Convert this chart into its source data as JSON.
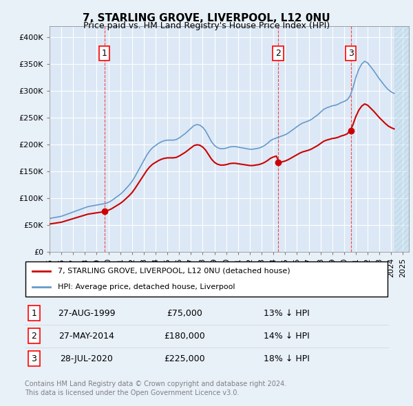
{
  "title": "7, STARLING GROVE, LIVERPOOL, L12 0NU",
  "subtitle": "Price paid vs. HM Land Registry's House Price Index (HPI)",
  "legend_line1": "7, STARLING GROVE, LIVERPOOL, L12 0NU (detached house)",
  "legend_line2": "HPI: Average price, detached house, Liverpool",
  "footer1": "Contains HM Land Registry data © Crown copyright and database right 2024.",
  "footer2": "This data is licensed under the Open Government Licence v3.0.",
  "sale_color": "#cc0000",
  "hpi_color": "#6699cc",
  "bg_color": "#e8f0f8",
  "plot_bg": "#dce8f5",
  "grid_color": "#ffffff",
  "transactions": [
    {
      "num": 1,
      "date": "27-AUG-1999",
      "price": 75000,
      "pct": "13%",
      "dir": "↓",
      "year": 1999.65
    },
    {
      "num": 2,
      "date": "27-MAY-2014",
      "price": 180000,
      "pct": "14%",
      "dir": "↓",
      "year": 2014.4
    },
    {
      "num": 3,
      "date": "28-JUL-2020",
      "price": 225000,
      "pct": "18%",
      "dir": "↓",
      "year": 2020.57
    }
  ],
  "hpi_years": [
    1995,
    1995.25,
    1995.5,
    1995.75,
    1996,
    1996.25,
    1996.5,
    1996.75,
    1997,
    1997.25,
    1997.5,
    1997.75,
    1998,
    1998.25,
    1998.5,
    1998.75,
    1999,
    1999.25,
    1999.5,
    1999.75,
    2000,
    2000.25,
    2000.5,
    2000.75,
    2001,
    2001.25,
    2001.5,
    2001.75,
    2002,
    2002.25,
    2002.5,
    2002.75,
    2003,
    2003.25,
    2003.5,
    2003.75,
    2004,
    2004.25,
    2004.5,
    2004.75,
    2005,
    2005.25,
    2005.5,
    2005.75,
    2006,
    2006.25,
    2006.5,
    2006.75,
    2007,
    2007.25,
    2007.5,
    2007.75,
    2008,
    2008.25,
    2008.5,
    2008.75,
    2009,
    2009.25,
    2009.5,
    2009.75,
    2010,
    2010.25,
    2010.5,
    2010.75,
    2011,
    2011.25,
    2011.5,
    2011.75,
    2012,
    2012.25,
    2012.5,
    2012.75,
    2013,
    2013.25,
    2013.5,
    2013.75,
    2014,
    2014.25,
    2014.5,
    2014.75,
    2015,
    2015.25,
    2015.5,
    2015.75,
    2016,
    2016.25,
    2016.5,
    2016.75,
    2017,
    2017.25,
    2017.5,
    2017.75,
    2018,
    2018.25,
    2018.5,
    2018.75,
    2019,
    2019.25,
    2019.5,
    2019.75,
    2020,
    2020.25,
    2020.5,
    2020.75,
    2021,
    2021.25,
    2021.5,
    2021.75,
    2022,
    2022.25,
    2022.5,
    2022.75,
    2023,
    2023.25,
    2023.5,
    2023.75,
    2024,
    2024.25
  ],
  "hpi_values": [
    62000,
    63000,
    64000,
    65000,
    66000,
    68000,
    70000,
    72000,
    74000,
    76000,
    78000,
    80000,
    82000,
    84000,
    85000,
    86000,
    87000,
    88000,
    89000,
    90000,
    92000,
    95000,
    99000,
    103000,
    107000,
    112000,
    118000,
    124000,
    131000,
    140000,
    150000,
    160000,
    170000,
    180000,
    188000,
    194000,
    198000,
    202000,
    205000,
    207000,
    208000,
    208000,
    208000,
    209000,
    212000,
    216000,
    220000,
    225000,
    230000,
    235000,
    237000,
    236000,
    232000,
    225000,
    215000,
    205000,
    198000,
    194000,
    192000,
    192000,
    193000,
    195000,
    196000,
    196000,
    195000,
    194000,
    193000,
    192000,
    191000,
    191000,
    192000,
    193000,
    195000,
    198000,
    202000,
    207000,
    210000,
    212000,
    214000,
    216000,
    218000,
    221000,
    225000,
    229000,
    233000,
    237000,
    240000,
    242000,
    244000,
    247000,
    251000,
    255000,
    260000,
    265000,
    268000,
    270000,
    272000,
    273000,
    275000,
    278000,
    280000,
    283000,
    290000,
    305000,
    325000,
    340000,
    350000,
    355000,
    352000,
    345000,
    338000,
    330000,
    322000,
    315000,
    308000,
    302000,
    298000,
    295000
  ],
  "ylim": [
    0,
    420000
  ],
  "xlim_start": 1995,
  "xlim_end": 2025.5,
  "hatch_start": 2024.25
}
